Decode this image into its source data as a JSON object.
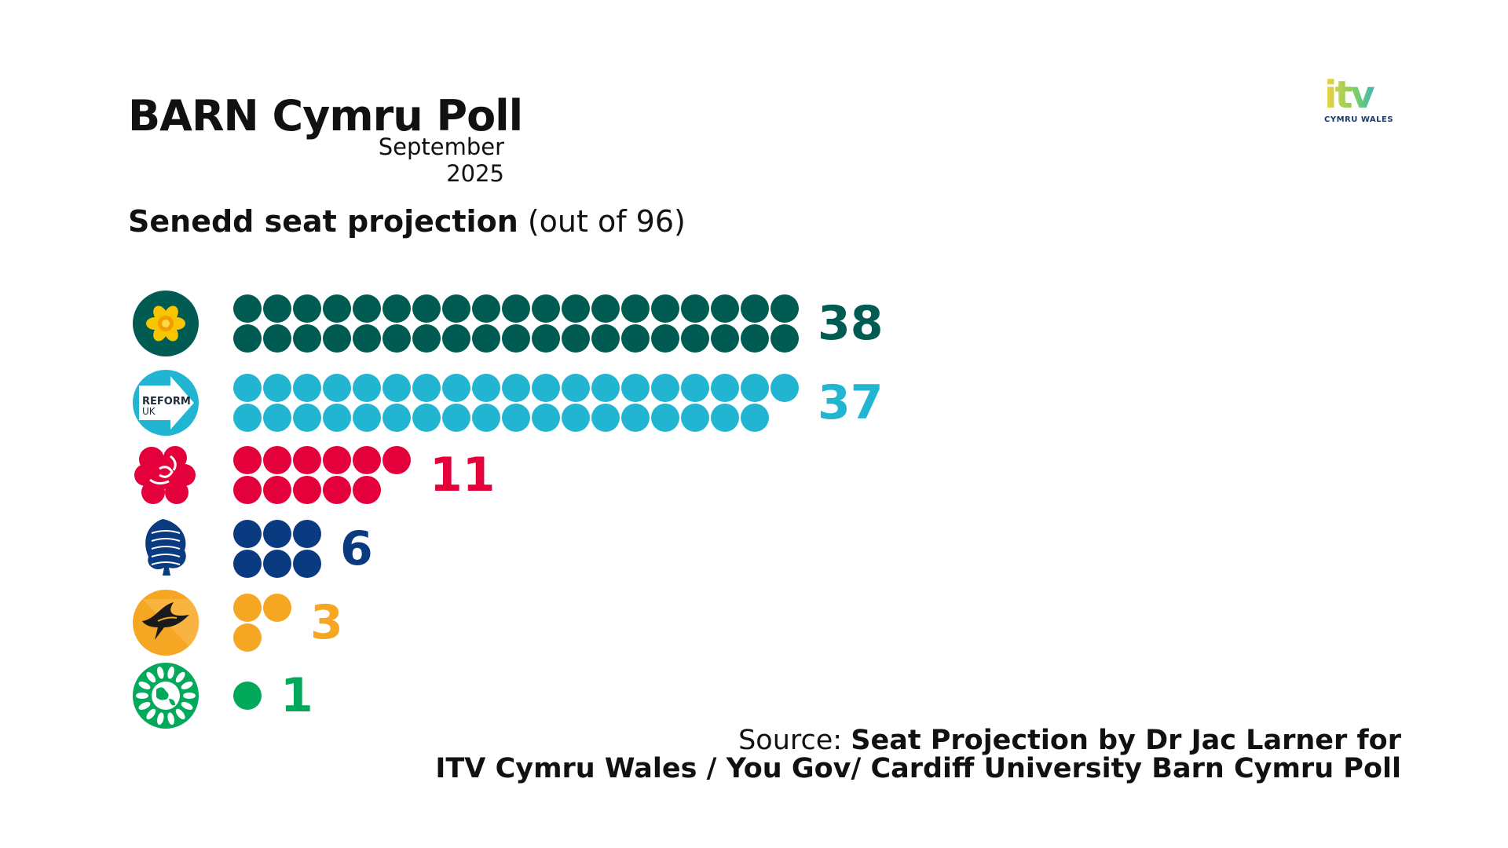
{
  "header": {
    "title": "BARN Cymru Poll",
    "subtitle": "September 2025",
    "brand_logo": "itv",
    "brand_logo_sub": "CYMRU WALES"
  },
  "projection": {
    "heading_bold": "Senedd seat projection",
    "heading_rest": "(out of 96)"
  },
  "source": {
    "label": "Source:",
    "line1": "Seat Projection by Dr Jac Larner for",
    "line2": "ITV Cymru Wales / You Gov/ Cardiff University Barn Cymru Poll"
  },
  "chart_data": {
    "type": "bar",
    "title": "Senedd seat projection (out of 96)",
    "xlabel": "",
    "ylabel": "",
    "total_seats": 96,
    "categories": [
      "Plaid Cymru",
      "Reform UK",
      "Labour",
      "Conservatives",
      "Liberal Democrats",
      "Green"
    ],
    "values": [
      38,
      37,
      11,
      6,
      3,
      1
    ],
    "colors": [
      "#005c53",
      "#22b5d1",
      "#e4003b",
      "#0a3a80",
      "#f5a623",
      "#02a95b"
    ],
    "icons": [
      "daffodil-icon",
      "reform-arrow-icon",
      "rose-icon",
      "tree-icon",
      "dove-icon",
      "globe-leaves-icon"
    ],
    "reform_icon_text": "REFORM",
    "reform_icon_subtext": "UK"
  }
}
